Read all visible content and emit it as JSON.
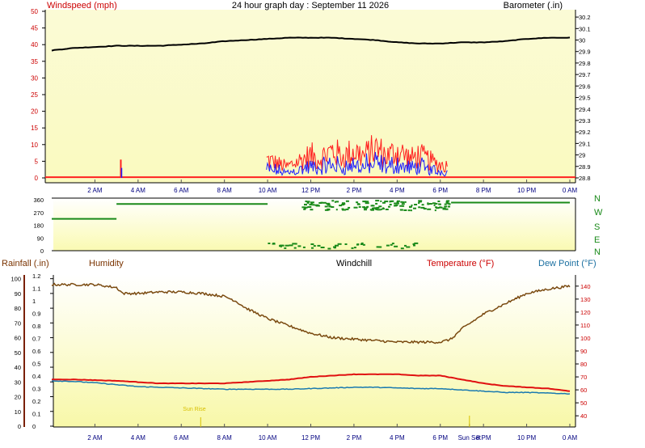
{
  "header": {
    "left_label": "Windspeed (mph)",
    "title": "24 hour graph day : September 11 2026",
    "right_label": "Barometer (.in)"
  },
  "bottom_header": {
    "rainfall": "Rainfall (.in)",
    "humidity": "Humidity",
    "windchill": "Windchill",
    "temperature": "Temperature (°F)",
    "dewpoint": "Dew Point (°F)"
  },
  "colors": {
    "wind_gust": "#ff2020",
    "wind_avg": "#2020ff",
    "barometer": "#000000",
    "direction": "#1a8a1a",
    "humidity": "#7a4a10",
    "temperature": "#e01010",
    "dewpoint": "#1a7ab0",
    "rainfall": "#7a2000",
    "label_red": "#cc0000",
    "label_blue": "#1a6fa0",
    "label_brown": "#7a3300",
    "label_green": "#1a8a1a",
    "sun_label": "#d8c000"
  },
  "chart_data": [
    {
      "type": "line",
      "x_ticks": [
        "2 AM",
        "4 AM",
        "6 AM",
        "8 AM",
        "10 AM",
        "12 PM",
        "2 PM",
        "4 PM",
        "6 PM",
        "8 PM",
        "10 PM",
        "0 AM"
      ],
      "y_left_ticks": [
        "0",
        "5",
        "10",
        "15",
        "20",
        "25",
        "30",
        "35",
        "40",
        "45",
        "50"
      ],
      "y_left_range": [
        0,
        50
      ],
      "y_right_ticks": [
        "28.8",
        "28.9",
        "29",
        "29.1",
        "29.2",
        "29.3",
        "29.4",
        "29.5",
        "29.6",
        "29.7",
        "29.8",
        "29.9",
        "30",
        "30.1",
        "30.2"
      ],
      "y_right_range": [
        28.8,
        30.25
      ],
      "series": [
        {
          "name": "Windspeed (mph)",
          "note": "gust/avg bursts between 10 AM and 6:30 PM",
          "gust_peak_x": [
            3.2,
            10,
            12,
            13,
            14,
            15,
            16,
            17,
            18
          ],
          "gust_peak_y": [
            5.5,
            8,
            10,
            12,
            12,
            13,
            12,
            10,
            6
          ]
        },
        {
          "name": "Barometer (.in)",
          "x": [
            0,
            1,
            2,
            3,
            4,
            5,
            6,
            7,
            8,
            9,
            10,
            11,
            12,
            13,
            14,
            15,
            16,
            17,
            18,
            19,
            20,
            21,
            22,
            23,
            24
          ],
          "y": [
            29.91,
            29.93,
            29.94,
            29.95,
            29.95,
            29.95,
            29.96,
            29.97,
            29.99,
            30.0,
            30.01,
            30.02,
            30.02,
            30.02,
            30.01,
            30.0,
            29.98,
            29.97,
            29.97,
            29.98,
            29.98,
            29.99,
            30.01,
            30.02,
            30.02
          ]
        }
      ]
    },
    {
      "type": "scatter",
      "y_ticks": [
        "360",
        "270",
        "180",
        "90",
        "0"
      ],
      "y_range": [
        0,
        360
      ],
      "compass": [
        "N",
        "W",
        "S",
        "E",
        "N"
      ],
      "series": [
        {
          "name": "Wind direction",
          "segments": [
            [
              0,
              3,
              225
            ],
            [
              3,
              10,
              330
            ],
            [
              18.5,
              24,
              340
            ]
          ],
          "scatter_low_band": [
            10,
            17,
            20,
            60
          ],
          "scatter_high_band": [
            11.5,
            18.5,
            290,
            360
          ]
        }
      ]
    },
    {
      "type": "line",
      "x_ticks": [
        "2 AM",
        "4 AM",
        "6 AM",
        "8 AM",
        "10 AM",
        "12 PM",
        "2 PM",
        "4 PM",
        "6 PM",
        "Sun Set",
        "8 PM",
        "10 PM",
        "0 AM"
      ],
      "rain_ticks": [
        "0",
        "0.1",
        "0.2",
        "0.3",
        "0.4",
        "0.5",
        "0.6",
        "0.7",
        "0.8",
        "0.9",
        "1",
        "1.1",
        "1.2"
      ],
      "humidity_ticks": [
        "0",
        "10",
        "20",
        "30",
        "40",
        "50",
        "60",
        "70",
        "80",
        "90",
        "100"
      ],
      "temp_ticks": [
        "40",
        "50",
        "60",
        "70",
        "80",
        "90",
        "100",
        "110",
        "120",
        "130",
        "140"
      ],
      "temp_range": [
        32,
        148
      ],
      "humidity_range": [
        0,
        102
      ],
      "sun_rise_label": "Sun Rise",
      "sun_set_label": "Sun Set",
      "series": [
        {
          "name": "Humidity",
          "x": [
            0,
            1,
            2,
            3,
            3.3,
            4,
            5,
            6,
            7,
            8,
            8.5,
            9,
            10,
            11,
            12,
            13,
            14,
            15,
            16,
            17,
            18,
            18.5,
            19,
            20,
            21,
            22,
            23,
            24
          ],
          "y": [
            96,
            96,
            96,
            94,
            90,
            90,
            91,
            91,
            90,
            88,
            85,
            80,
            73,
            68,
            63,
            60,
            59,
            58,
            57,
            57,
            57,
            59,
            66,
            76,
            83,
            90,
            93,
            95
          ]
        },
        {
          "name": "Temperature (°F)",
          "x": [
            0,
            1,
            2,
            3,
            4,
            5,
            6,
            7,
            8,
            9,
            10,
            11,
            12,
            13,
            14,
            15,
            16,
            17,
            18,
            19,
            20,
            21,
            22,
            23,
            24
          ],
          "y": [
            68,
            68,
            67.5,
            67,
            66,
            65,
            65,
            65,
            65,
            66,
            67,
            68,
            70,
            71,
            72,
            72,
            72,
            71,
            71,
            68,
            65,
            63,
            62,
            61,
            59
          ]
        },
        {
          "name": "Dew Point (°F)",
          "x": [
            0,
            1,
            2,
            3,
            4,
            5,
            6,
            7,
            8,
            9,
            10,
            11,
            12,
            13,
            14,
            15,
            16,
            17,
            18,
            19,
            20,
            21,
            22,
            23,
            24
          ],
          "y": [
            67,
            66.5,
            65.5,
            64,
            62.5,
            62,
            61.5,
            61,
            60.5,
            60.5,
            60.5,
            60.5,
            61,
            61.5,
            62,
            62,
            61.5,
            61,
            61,
            60,
            59,
            58,
            58,
            57.5,
            57
          ]
        }
      ]
    }
  ]
}
